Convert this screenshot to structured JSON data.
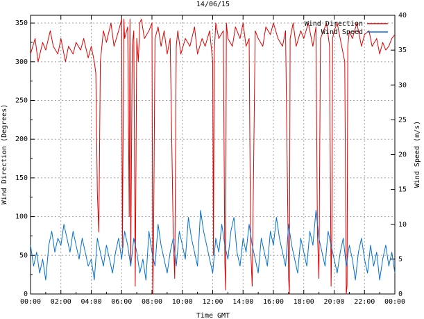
{
  "chart_data": {
    "type": "line",
    "title": "14/06/15",
    "xlabel": "Time GMT",
    "ylabel_left": "Wind Direction (Degrees)",
    "ylabel_right": "Wind Speed (m/s)",
    "x_ticks": [
      "00:00",
      "02:00",
      "04:00",
      "06:00",
      "08:00",
      "10:00",
      "12:00",
      "14:00",
      "16:00",
      "18:00",
      "20:00",
      "22:00",
      "00:00"
    ],
    "x_range_hours": [
      0,
      24
    ],
    "y_left_ticks": [
      0,
      50,
      100,
      150,
      200,
      250,
      300,
      350
    ],
    "y_left_range": [
      0,
      360
    ],
    "y_right_ticks": [
      0,
      5,
      10,
      15,
      20,
      25,
      30,
      35,
      40
    ],
    "y_right_range": [
      0,
      40
    ],
    "grid": true,
    "legend_position": "top-right",
    "series": [
      {
        "name": "Wind Direction",
        "color": "#e00000",
        "axis": "left",
        "units": "degrees",
        "baseline_range": [
          290,
          350
        ],
        "x_hours": [
          0.0,
          0.3,
          0.5,
          0.8,
          1.0,
          1.3,
          1.5,
          1.8,
          2.0,
          2.3,
          2.5,
          2.8,
          3.0,
          3.3,
          3.5,
          3.8,
          4.0,
          4.2,
          4.3,
          4.4,
          4.5,
          4.6,
          4.8,
          5.0,
          5.3,
          5.5,
          5.8,
          6.0,
          6.05,
          6.1,
          6.15,
          6.2,
          6.4,
          6.5,
          6.55,
          6.6,
          6.7,
          6.8,
          6.9,
          7.0,
          7.1,
          7.2,
          7.3,
          7.5,
          7.8,
          8.0,
          8.05,
          8.1,
          8.2,
          8.4,
          8.6,
          8.8,
          9.0,
          9.2,
          9.4,
          9.5,
          9.6,
          9.7,
          9.9,
          10.2,
          10.5,
          10.8,
          11.0,
          11.3,
          11.5,
          11.8,
          12.0,
          12.05,
          12.1,
          12.2,
          12.4,
          12.7,
          12.8,
          12.85,
          12.9,
          13.0,
          13.3,
          13.5,
          13.8,
          14.0,
          14.2,
          14.4,
          14.5,
          14.6,
          14.8,
          15.0,
          15.3,
          15.5,
          15.8,
          16.0,
          16.3,
          16.6,
          16.8,
          17.0,
          17.05,
          17.1,
          17.3,
          17.5,
          17.8,
          18.0,
          18.3,
          18.6,
          18.8,
          18.9,
          19.0,
          19.1,
          19.3,
          19.5,
          19.7,
          19.8,
          19.85,
          19.9,
          20.0,
          20.2,
          20.5,
          20.7,
          20.8,
          20.85,
          20.9,
          21.0,
          21.2,
          21.5,
          21.8,
          22.0,
          22.3,
          22.5,
          22.8,
          23.0,
          23.2,
          23.4,
          23.6,
          23.8,
          24.0
        ],
        "y": [
          310,
          330,
          300,
          325,
          315,
          340,
          320,
          310,
          330,
          300,
          320,
          310,
          325,
          315,
          330,
          305,
          320,
          300,
          285,
          130,
          80,
          300,
          340,
          325,
          350,
          320,
          340,
          355,
          60,
          200,
          355,
          330,
          345,
          100,
          355,
          40,
          320,
          340,
          10,
          330,
          300,
          350,
          355,
          330,
          340,
          350,
          0,
          60,
          330,
          345,
          320,
          340,
          310,
          330,
          80,
          20,
          320,
          340,
          310,
          330,
          320,
          345,
          310,
          330,
          320,
          340,
          300,
          50,
          310,
          350,
          330,
          340,
          40,
          5,
          350,
          330,
          320,
          345,
          330,
          350,
          320,
          330,
          60,
          10,
          340,
          330,
          320,
          345,
          335,
          350,
          330,
          320,
          340,
          20,
          0,
          330,
          350,
          320,
          340,
          330,
          350,
          320,
          345,
          80,
          20,
          330,
          340,
          350,
          320,
          10,
          80,
          330,
          340,
          350,
          320,
          300,
          0,
          10,
          320,
          340,
          330,
          350,
          320,
          335,
          340,
          320,
          330,
          310,
          325,
          315,
          320,
          330,
          335
        ],
        "spikes_note": ""
      },
      {
        "name": "Wind Speed",
        "color": "#0070d0",
        "axis": "right",
        "units": "m/s",
        "x_hours": [
          0.0,
          0.2,
          0.4,
          0.6,
          0.8,
          1.0,
          1.2,
          1.4,
          1.6,
          1.8,
          2.0,
          2.2,
          2.4,
          2.6,
          2.8,
          3.0,
          3.2,
          3.4,
          3.6,
          3.8,
          4.0,
          4.2,
          4.4,
          4.6,
          4.8,
          5.0,
          5.2,
          5.4,
          5.6,
          5.8,
          6.0,
          6.2,
          6.4,
          6.6,
          6.8,
          7.0,
          7.2,
          7.4,
          7.6,
          7.8,
          8.0,
          8.2,
          8.4,
          8.6,
          8.8,
          9.0,
          9.2,
          9.4,
          9.6,
          9.8,
          10.0,
          10.2,
          10.4,
          10.6,
          10.8,
          11.0,
          11.2,
          11.4,
          11.6,
          11.8,
          12.0,
          12.2,
          12.4,
          12.6,
          12.8,
          13.0,
          13.2,
          13.4,
          13.6,
          13.8,
          14.0,
          14.2,
          14.4,
          14.6,
          14.8,
          15.0,
          15.2,
          15.4,
          15.6,
          15.8,
          16.0,
          16.2,
          16.4,
          16.6,
          16.8,
          17.0,
          17.2,
          17.4,
          17.6,
          17.8,
          18.0,
          18.2,
          18.4,
          18.6,
          18.8,
          19.0,
          19.2,
          19.4,
          19.6,
          19.8,
          20.0,
          20.2,
          20.4,
          20.6,
          20.8,
          21.0,
          21.2,
          21.4,
          21.6,
          21.8,
          22.0,
          22.2,
          22.4,
          22.6,
          22.8,
          23.0,
          23.2,
          23.4,
          23.6,
          23.8,
          24.0
        ],
        "y": [
          7,
          4,
          6,
          3,
          5,
          2,
          7,
          9,
          6,
          8,
          7,
          10,
          8,
          6,
          9,
          7,
          5,
          8,
          6,
          4,
          5,
          2,
          8,
          6,
          4,
          7,
          5,
          3,
          6,
          8,
          5,
          9,
          7,
          4,
          8,
          6,
          3,
          5,
          2,
          9,
          6,
          4,
          10,
          7,
          5,
          3,
          6,
          8,
          4,
          9,
          7,
          5,
          11,
          8,
          6,
          4,
          12,
          9,
          7,
          5,
          3,
          8,
          6,
          10,
          7,
          5,
          9,
          11,
          6,
          4,
          8,
          6,
          10,
          7,
          5,
          3,
          8,
          6,
          4,
          9,
          7,
          11,
          8,
          6,
          4,
          10,
          7,
          5,
          3,
          8,
          6,
          4,
          9,
          7,
          12,
          8,
          6,
          4,
          9,
          7,
          5,
          3,
          6,
          8,
          4,
          7,
          5,
          2,
          6,
          8,
          5,
          3,
          7,
          4,
          6,
          2,
          5,
          7,
          4,
          6,
          3
        ]
      }
    ]
  }
}
